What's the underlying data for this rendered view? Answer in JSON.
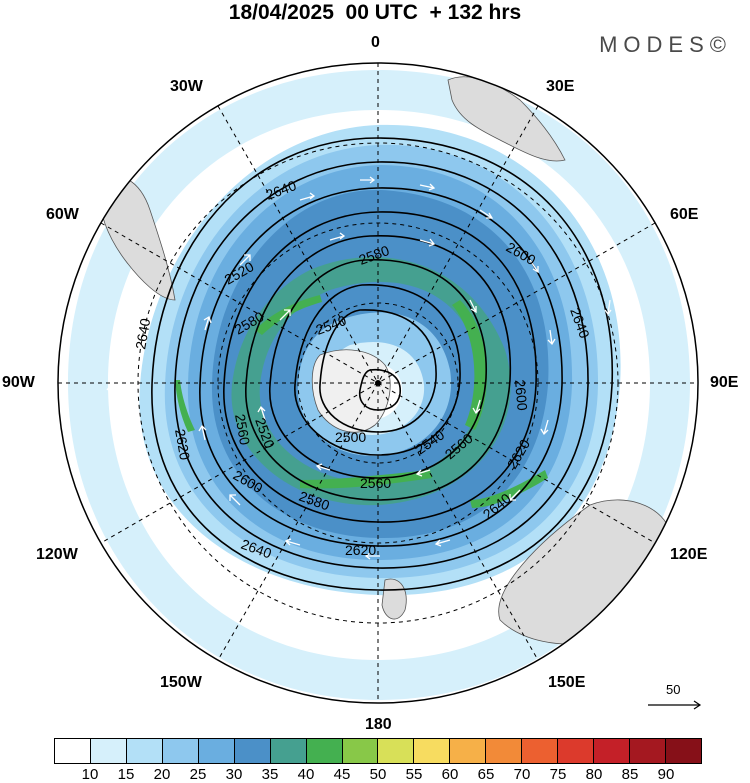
{
  "header": {
    "title": "18/04/2025  00 UTC  + 132 hrs",
    "logo": "MODES©"
  },
  "map": {
    "projection": "south polar stereographic",
    "longitude_labels": {
      "top": "0",
      "bottom": "180",
      "left": "90W",
      "right": "90E",
      "upper_left_1": "30W",
      "upper_left_2": "60W",
      "upper_right_1": "30E",
      "upper_right_2": "60E",
      "lower_left_1": "120W",
      "lower_left_2": "150W",
      "lower_right_1": "120E",
      "lower_right_2": "150E"
    },
    "contour_labels": [
      "2640",
      "2640",
      "2640",
      "2640",
      "2640",
      "2620",
      "2620",
      "2620",
      "2600",
      "2600",
      "2600",
      "2580",
      "2580",
      "2580",
      "2560",
      "2560",
      "2560",
      "2540",
      "2540",
      "2520",
      "2520",
      "2500"
    ],
    "vector_reference": "50",
    "colors": {
      "land": "#dcdcdc",
      "ocean": "#ffffff",
      "contour": "#000000",
      "vector": "#ffffff"
    }
  },
  "colorbar": {
    "ticks": [
      "10",
      "15",
      "20",
      "25",
      "30",
      "35",
      "40",
      "45",
      "50",
      "55",
      "60",
      "65",
      "70",
      "75",
      "80",
      "85",
      "90"
    ],
    "colors": [
      "#ffffff",
      "#d6f0fb",
      "#b3e0f7",
      "#8ec8ee",
      "#6aaee0",
      "#4b90c8",
      "#45a090",
      "#44b050",
      "#88c848",
      "#d8e058",
      "#f7dc60",
      "#f6b048",
      "#f28a38",
      "#ec6030",
      "#dc3a2c",
      "#c42028",
      "#a41820",
      "#861018"
    ]
  }
}
